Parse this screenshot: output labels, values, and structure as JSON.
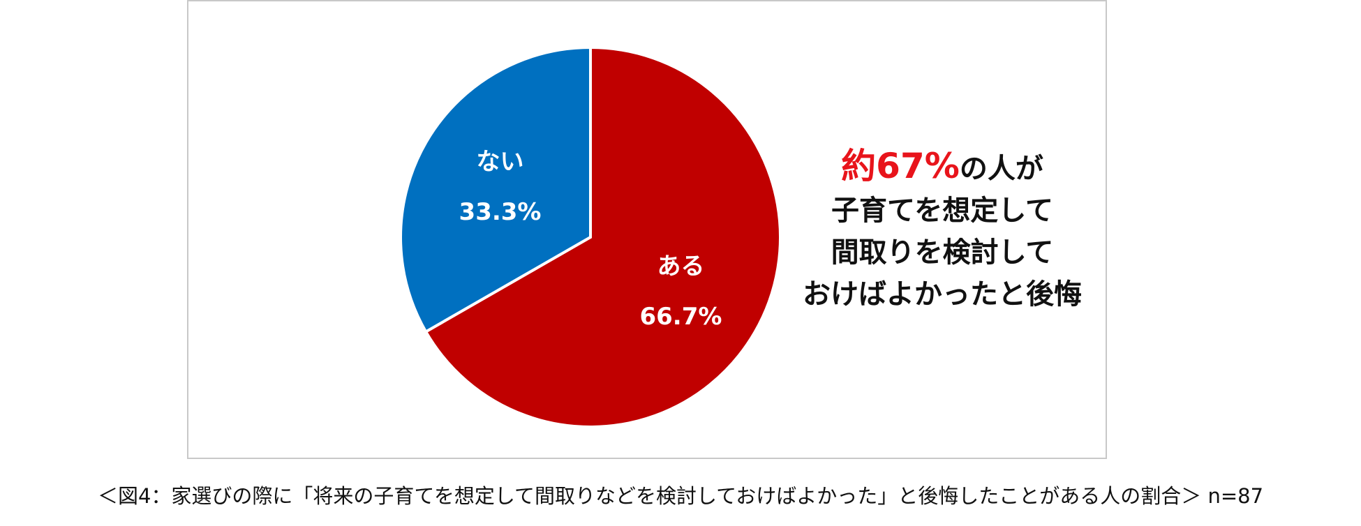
{
  "chart_data": {
    "type": "pie",
    "categories": [
      "ある",
      "ない"
    ],
    "values": [
      66.7,
      33.3
    ],
    "value_labels": [
      "66.7%",
      "33.3%"
    ],
    "colors": [
      "#c00000",
      "#0070c0"
    ],
    "start_angle_deg": 0,
    "direction": "clockwise",
    "legend": "none"
  },
  "callout": {
    "highlight": "約67%",
    "line1_rest": "の人が",
    "line2": "子育てを想定して",
    "line3": "間取りを検討して",
    "line4": "おけばよかったと後悔"
  },
  "caption": "＜図4：家選びの際に「将来の子育てを想定して間取りなどを検討しておけばよかった」と後悔したことがある人の割合＞ n=87"
}
